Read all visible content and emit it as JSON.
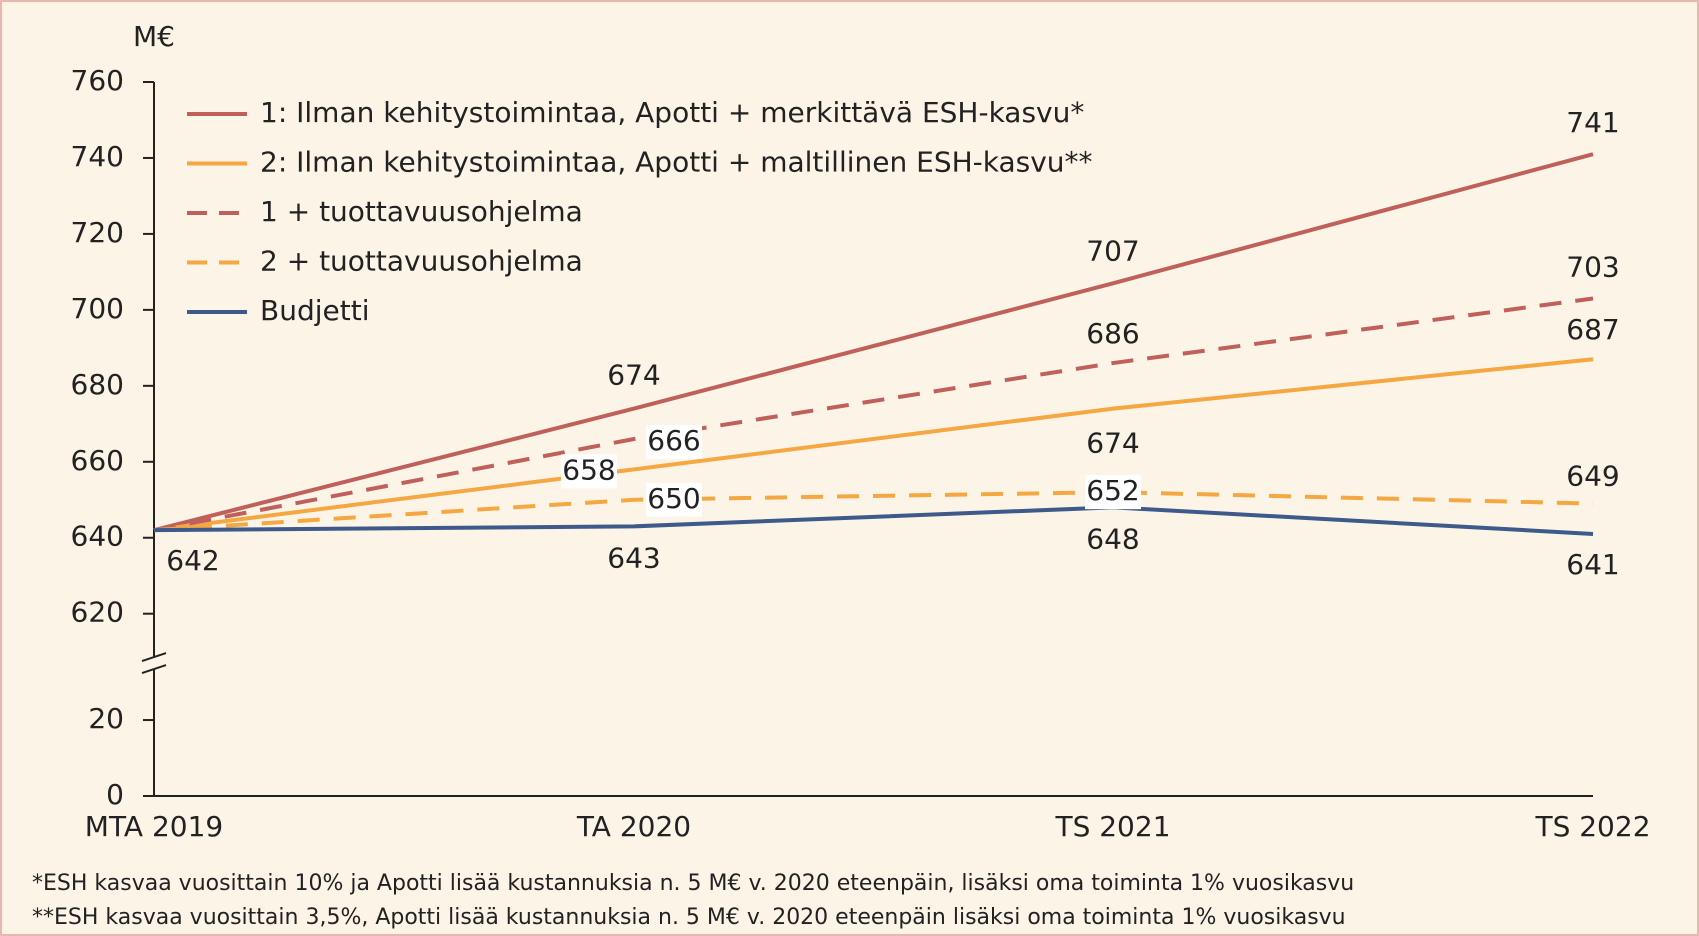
{
  "chart_data": {
    "type": "line",
    "y_label": "M€",
    "categories": [
      "MTA 2019",
      "TA 2020",
      "TS 2021",
      "TS 2022"
    ],
    "series": [
      {
        "name": "1: Ilman kehitystoimintaa, Apotti + merkittävä ESH-kasvu*",
        "color": "#c0605a",
        "dashed": false,
        "values": [
          642,
          674,
          707,
          741
        ]
      },
      {
        "name": "2: Ilman kehitystoimintaa, Apotti + maltillinen ESH-kasvu**",
        "color": "#f5a742",
        "dashed": false,
        "values": [
          642,
          658,
          674,
          687
        ]
      },
      {
        "name": "1 + tuottavuusohjelma",
        "color": "#c0605a",
        "dashed": true,
        "values": [
          642,
          666,
          686,
          703
        ]
      },
      {
        "name": "2 + tuottavuusohjelma",
        "color": "#f5a742",
        "dashed": true,
        "values": [
          642,
          650,
          652,
          649
        ]
      },
      {
        "name": "Budjetti",
        "color": "#3d5a8a",
        "dashed": false,
        "values": [
          642,
          643,
          648,
          641
        ]
      }
    ],
    "ylim": [
      0,
      760
    ],
    "ybreak": [
      35,
      607
    ],
    "yticks": [
      0,
      20,
      620,
      640,
      660,
      680,
      700,
      720,
      740,
      760
    ],
    "legend": "top-left",
    "footnotes": [
      "*ESH kasvaa vuosittain 10% ja Apotti lisää kustannuksia n. 5 M€ v. 2020 eteenpäin, lisäksi oma toiminta 1% vuosikasvu",
      "**ESH kasvaa  vuosittain  3,5%, Apotti lisää kustannuksia n. 5 M€ v. 2020 eteenpäin lisäksi oma toiminta 1% vuosikasvu"
    ]
  }
}
